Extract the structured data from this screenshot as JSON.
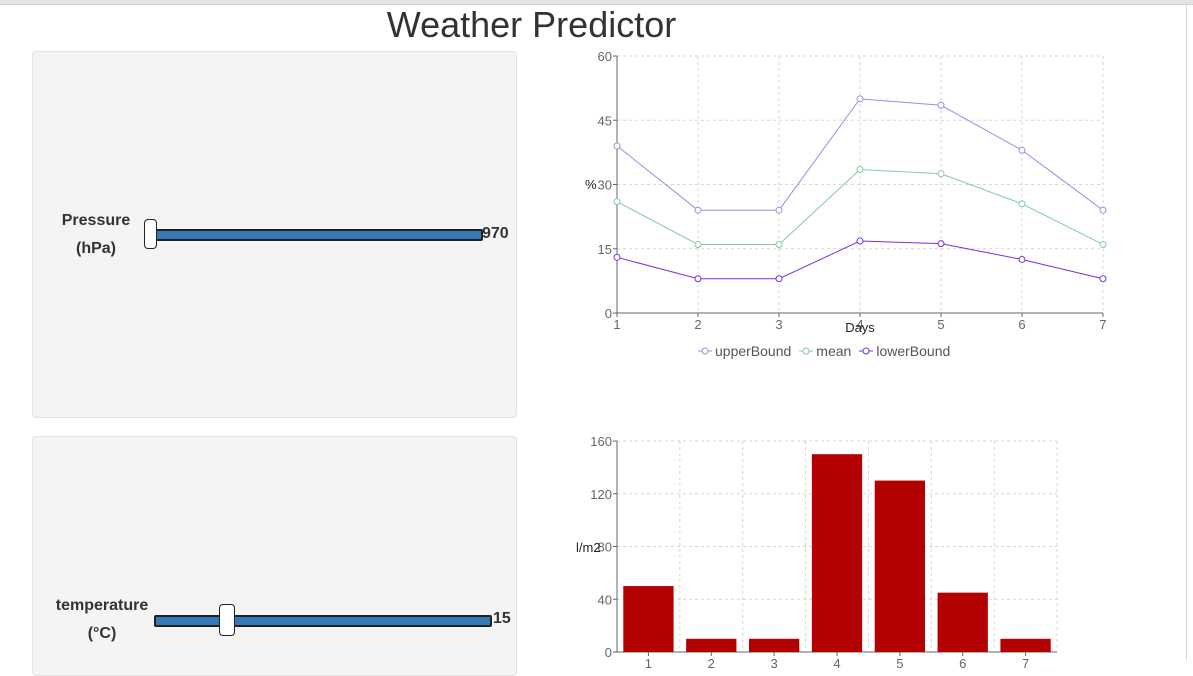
{
  "title": "Weather Predictor",
  "controls": [
    {
      "label_line1": "Pressure",
      "label_line2": "(hPa)",
      "value": "970",
      "position": 0.0
    },
    {
      "label_line1": "temperature",
      "label_line2": "(°C)",
      "value": "15",
      "position": 0.2
    }
  ],
  "chart_data": [
    {
      "type": "line",
      "x": [
        1,
        2,
        3,
        4,
        5,
        6,
        7
      ],
      "xlabel": "Days",
      "ylabel": "%",
      "ylim": [
        0,
        60
      ],
      "yticks": [
        0,
        15,
        30,
        45,
        60
      ],
      "grid": true,
      "legend_position": "bottom",
      "series": [
        {
          "name": "upperBound",
          "color": "#9c8fe0",
          "values": [
            39,
            24,
            24,
            50,
            48.5,
            38,
            24
          ]
        },
        {
          "name": "mean",
          "color": "#82cc9e",
          "values": [
            26,
            16,
            16,
            33.5,
            32.5,
            25.5,
            16
          ]
        },
        {
          "name": "lowerBound",
          "color": "#7b2fd9",
          "values": [
            13,
            8,
            8,
            16.8,
            16.2,
            12.5,
            8
          ]
        }
      ]
    },
    {
      "type": "bar",
      "categories": [
        "1",
        "2",
        "3",
        "4",
        "5",
        "6",
        "7"
      ],
      "values": [
        50,
        10,
        10,
        150,
        130,
        45,
        10
      ],
      "ylabel": "l/m2",
      "ylim": [
        0,
        160
      ],
      "yticks": [
        0,
        40,
        80,
        120,
        160
      ],
      "grid": true,
      "color": "#b30000"
    }
  ]
}
